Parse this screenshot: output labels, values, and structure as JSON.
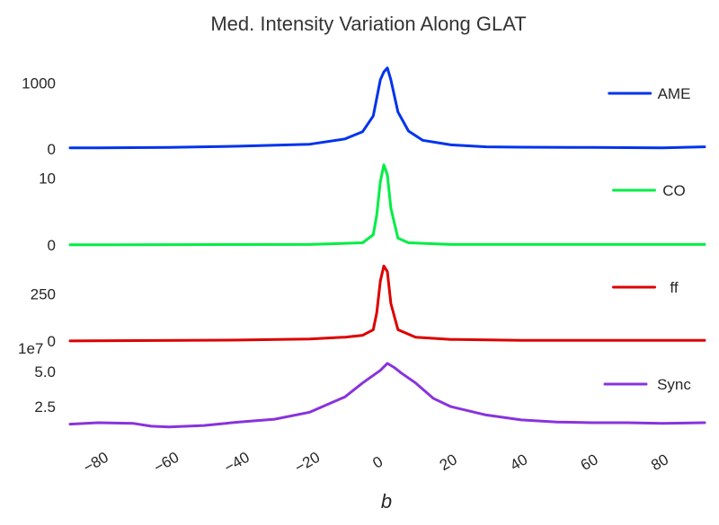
{
  "chart_data": {
    "type": "line",
    "title": "Med. Intensity Variation Along GLAT",
    "xlabel": "b",
    "xlim": [
      -88,
      92
    ],
    "xticks": [
      -80,
      -60,
      -40,
      -20,
      0,
      20,
      40,
      60,
      80
    ],
    "xtick_labels": [
      "−80",
      "−60",
      "−40",
      "−20",
      "0",
      "20",
      "40",
      "60",
      "80"
    ],
    "grid": false,
    "panels": [
      {
        "name": "AME",
        "color": "#0033ee",
        "legend": "AME",
        "ylim": [
          -30,
          1280
        ],
        "yticks": [
          0,
          1000
        ],
        "ytick_labels": [
          "0",
          "1000"
        ],
        "offset_label": "",
        "x": [
          -88,
          -80,
          -60,
          -40,
          -20,
          -10,
          -5,
          -2,
          0,
          1,
          2,
          3,
          5,
          8,
          12,
          20,
          30,
          40,
          60,
          80,
          92
        ],
        "y": [
          15,
          15,
          20,
          40,
          70,
          150,
          260,
          500,
          1050,
          1170,
          1230,
          1050,
          560,
          270,
          130,
          60,
          30,
          25,
          20,
          15,
          30
        ]
      },
      {
        "name": "CO",
        "color": "#00ee44",
        "legend": "CO",
        "ylim": [
          -0.3,
          12.5
        ],
        "yticks": [
          0,
          10
        ],
        "ytick_labels": [
          "0",
          "10"
        ],
        "offset_label": "",
        "x": [
          -88,
          -20,
          -5,
          -2,
          -1,
          0,
          1,
          2,
          3,
          5,
          8,
          20,
          92
        ],
        "y": [
          0,
          0.05,
          0.3,
          1.5,
          4.5,
          9.5,
          12,
          10.5,
          5.5,
          1.0,
          0.3,
          0.05,
          0.05
        ]
      },
      {
        "name": "ff",
        "color": "#dd0000",
        "legend": "ff",
        "ylim": [
          -10,
          440
        ],
        "yticks": [
          0,
          250
        ],
        "ytick_labels": [
          "0",
          "250"
        ],
        "offset_label": "",
        "x": [
          -88,
          -40,
          -20,
          -10,
          -5,
          -2,
          -1,
          0,
          1,
          2,
          3,
          5,
          10,
          20,
          40,
          92
        ],
        "y": [
          0,
          5,
          10,
          20,
          30,
          60,
          150,
          320,
          400,
          370,
          200,
          60,
          20,
          8,
          3,
          3
        ]
      },
      {
        "name": "Sync",
        "color": "#8833dd",
        "legend": "Sync",
        "ylim": [
          0,
          6.3
        ],
        "yticks": [
          2.5,
          5.0
        ],
        "ytick_labels": [
          "2.5",
          "5.0"
        ],
        "offset_label": "1e7",
        "x": [
          -88,
          -80,
          -70,
          -65,
          -60,
          -50,
          -40,
          -30,
          -20,
          -10,
          -5,
          0,
          2,
          4,
          6,
          10,
          15,
          20,
          30,
          40,
          50,
          60,
          70,
          80,
          92
        ],
        "y": [
          1.25,
          1.35,
          1.3,
          1.1,
          1.05,
          1.15,
          1.4,
          1.6,
          2.1,
          3.2,
          4.2,
          5.1,
          5.6,
          5.3,
          4.9,
          4.2,
          3.1,
          2.5,
          1.9,
          1.55,
          1.4,
          1.35,
          1.35,
          1.3,
          1.35
        ]
      }
    ]
  }
}
